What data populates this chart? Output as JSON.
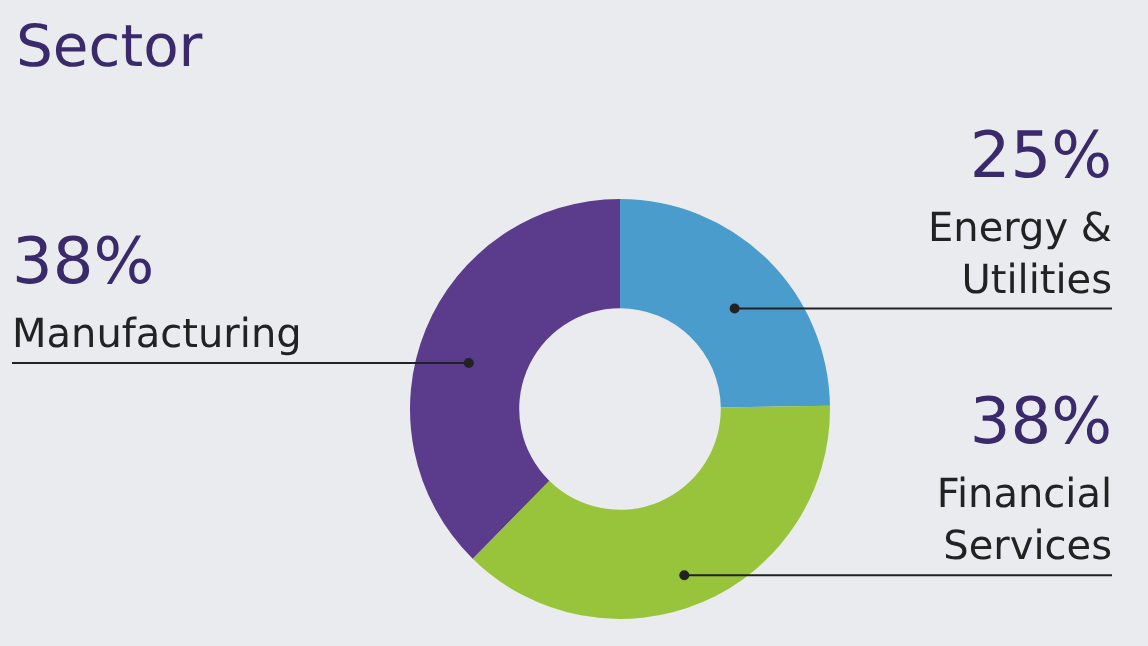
{
  "chart_data": {
    "type": "donut",
    "title": "Sector",
    "categories": [
      "Energy & Utilities",
      "Financial Services",
      "Manufacturing"
    ],
    "values": [
      25,
      38,
      38
    ],
    "value_labels": [
      "25%",
      "38%",
      "38%"
    ],
    "colors": [
      "#4a9ccc",
      "#98c43c",
      "#5b3b8c"
    ],
    "legend": false
  }
}
